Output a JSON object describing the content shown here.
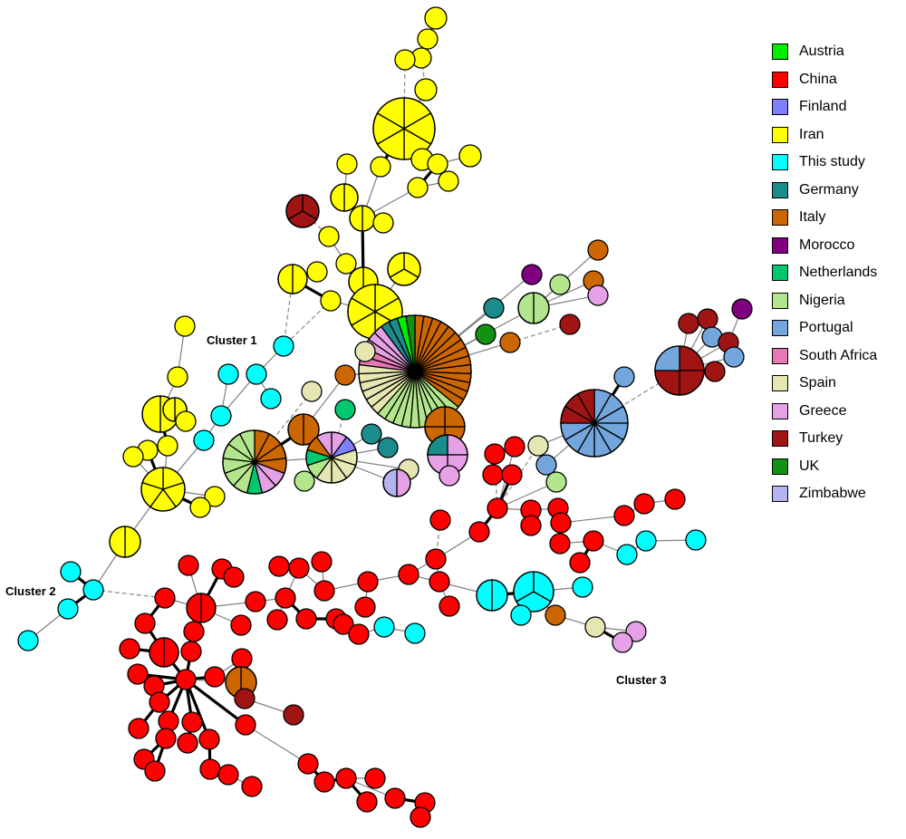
{
  "legend": [
    {
      "label": "Austria",
      "color": "#00ee00"
    },
    {
      "label": "China",
      "color": "#ff0000"
    },
    {
      "label": "Finland",
      "color": "#7f7fff"
    },
    {
      "label": "Iran",
      "color": "#ffff00"
    },
    {
      "label": "This study",
      "color": "#00ffff"
    },
    {
      "label": "Germany",
      "color": "#1a8c8c"
    },
    {
      "label": "Italy",
      "color": "#cc6600"
    },
    {
      "label": "Morocco",
      "color": "#800080"
    },
    {
      "label": "Netherlands",
      "color": "#00c86e"
    },
    {
      "label": "Nigeria",
      "color": "#b3e68c"
    },
    {
      "label": "Portugal",
      "color": "#73a6dc"
    },
    {
      "label": "South Africa",
      "color": "#e678b4"
    },
    {
      "label": "Spain",
      "color": "#e6e6b3"
    },
    {
      "label": "Greece",
      "color": "#e6a0e6"
    },
    {
      "label": "Turkey",
      "color": "#a01414"
    },
    {
      "label": "UK",
      "color": "#129112"
    },
    {
      "label": "Zimbabwe",
      "color": "#b4b4f0"
    }
  ],
  "clusters": [
    "Cluster 1",
    "Cluster 2",
    "Cluster 3"
  ]
}
